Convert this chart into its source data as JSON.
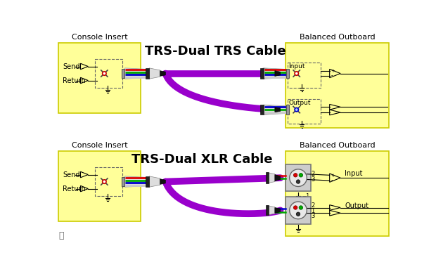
{
  "bg_color": "#ffffff",
  "panel_bg": "#ffff99",
  "panel_border": "#cccc00",
  "title1": "TRS-Dual TRS Cable",
  "title2": "TRS-Dual XLR Cable",
  "label_console": "Console Insert",
  "label_balanced": "Balanced Outboard",
  "label_send": "Send",
  "label_return": "Return",
  "label_input": "Input",
  "label_output": "Output",
  "cable_purple": "#9900cc",
  "wire_red": "#dd0000",
  "wire_green": "#00aa00",
  "wire_blue": "#0000cc",
  "wire_white": "#cccccc",
  "wire_black": "#111111",
  "jack_gray": "#aaaaaa",
  "sleeve_gray": "#cccccc",
  "ferrule_dark": "#333333",
  "text_color": "#000000"
}
